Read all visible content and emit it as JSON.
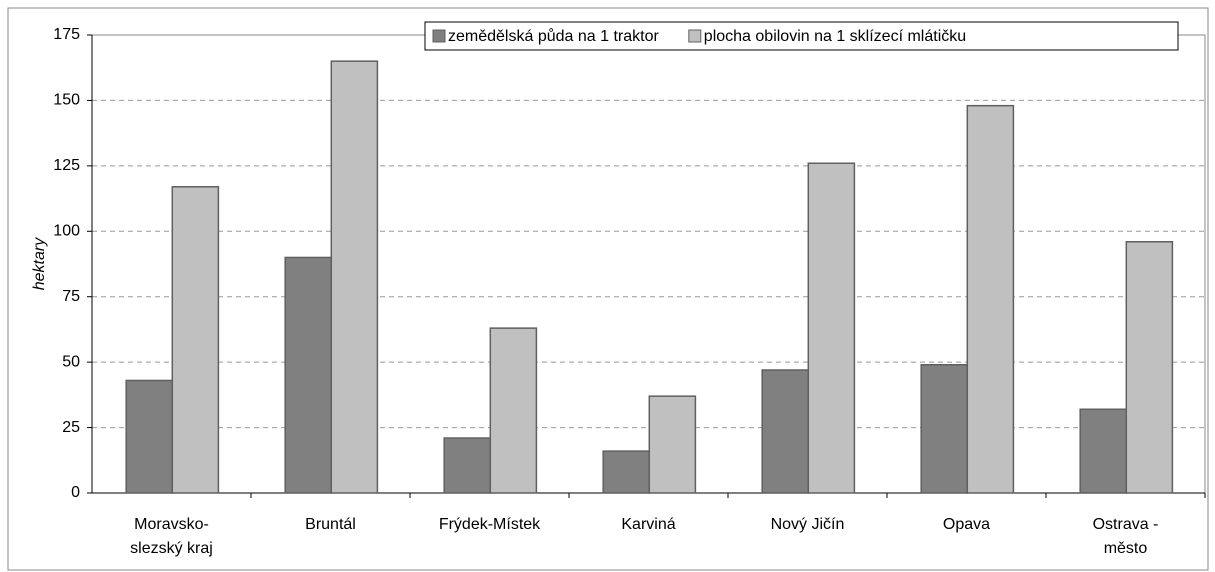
{
  "chart_data": {
    "type": "bar",
    "categories": [
      "Moravsko-\nslezský kraj",
      "Bruntál",
      "Frýdek-Místek",
      "Karviná",
      "Nový Jičín",
      "Opava",
      "Ostrava -\nměsto"
    ],
    "series": [
      {
        "name": "zemědělská půda na 1 traktor",
        "color": "#808080",
        "values": [
          43,
          90,
          21,
          16,
          47,
          49,
          32
        ]
      },
      {
        "name": "plocha obilovin na 1 sklízecí mlátičku",
        "color": "#c0c0c0",
        "values": [
          117,
          165,
          63,
          37,
          126,
          148,
          96
        ]
      }
    ],
    "y_label": "hektary",
    "ylim": [
      0,
      175
    ],
    "yticks": [
      0,
      25,
      50,
      75,
      100,
      125,
      150,
      175
    ],
    "grid": true,
    "legend": "top"
  }
}
